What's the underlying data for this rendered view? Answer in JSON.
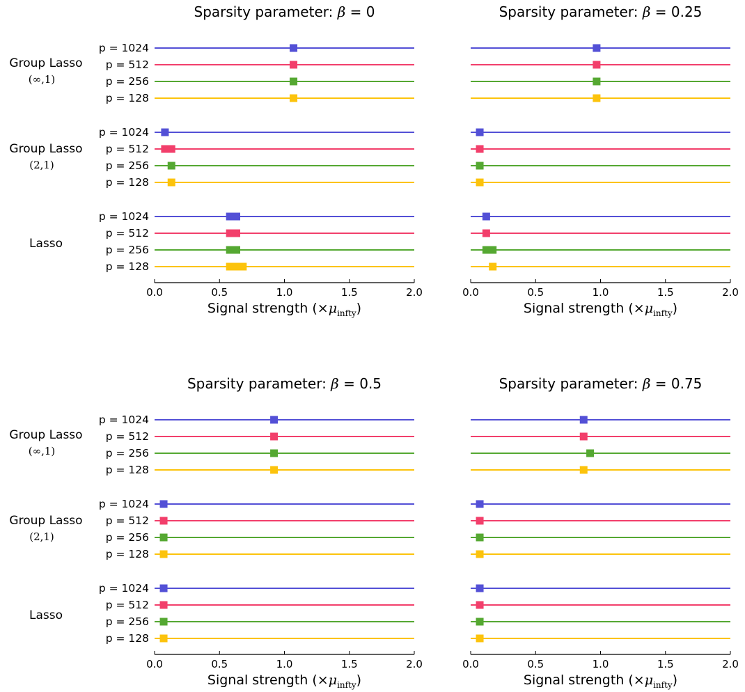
{
  "figure": {
    "groups": [
      {
        "key": "gl_inf",
        "name": "Group Lasso",
        "sub": "(∞,1)"
      },
      {
        "key": "gl_2",
        "name": "Group Lasso",
        "sub": "(2,1)"
      },
      {
        "key": "lasso",
        "name": "Lasso",
        "sub": ""
      }
    ],
    "row_labels": [
      "p = 1024",
      "p = 512",
      "p = 256",
      "p = 128"
    ],
    "xlabel_prefix": "Signal strength (",
    "xlabel_times": "×",
    "xlabel_mu": "μ",
    "xlabel_sub": "infty",
    "xlabel_suffix": ")",
    "title_prefix": "Sparsity parameter: ",
    "title_beta": "β",
    "title_eq": " = "
  },
  "colors": {
    "p = 1024": "#5350d6",
    "p = 512": "#f23f6b",
    "p = 256": "#55a832",
    "p = 128": "#fcc30c"
  },
  "chart_data": [
    {
      "type": "scatter",
      "title": "Sparsity parameter: β = 0",
      "beta": "0",
      "xlabel": "Signal strength (×μ_infty)",
      "xlim": [
        0.0,
        2.0
      ],
      "xticks": [
        "0.0",
        "0.5",
        "1.0",
        "1.5",
        "2.0"
      ],
      "groups": [
        {
          "name": "Group Lasso (∞,1)",
          "series": [
            {
              "name": "p = 1024",
              "x": [
                1.07,
                1.07
              ]
            },
            {
              "name": "p = 512",
              "x": [
                1.07,
                1.07
              ]
            },
            {
              "name": "p = 256",
              "x": [
                1.07,
                1.07
              ]
            },
            {
              "name": "p = 128",
              "x": [
                1.07,
                1.07
              ]
            }
          ]
        },
        {
          "name": "Group Lasso (2,1)",
          "series": [
            {
              "name": "p = 1024",
              "x": [
                0.08,
                0.08
              ]
            },
            {
              "name": "p = 512",
              "x": [
                0.08,
                0.13
              ]
            },
            {
              "name": "p = 256",
              "x": [
                0.13,
                0.13
              ]
            },
            {
              "name": "p = 128",
              "x": [
                0.13,
                0.13
              ]
            }
          ]
        },
        {
          "name": "Lasso",
          "series": [
            {
              "name": "p = 1024",
              "x": [
                0.58,
                0.63
              ]
            },
            {
              "name": "p = 512",
              "x": [
                0.58,
                0.63
              ]
            },
            {
              "name": "p = 256",
              "x": [
                0.58,
                0.63
              ]
            },
            {
              "name": "p = 128",
              "x": [
                0.58,
                0.68
              ]
            }
          ]
        }
      ]
    },
    {
      "type": "scatter",
      "title": "Sparsity parameter: β = 0.25",
      "beta": "0.25",
      "xlabel": "Signal strength (×μ_infty)",
      "xlim": [
        0.0,
        2.0
      ],
      "xticks": [
        "0.0",
        "0.5",
        "1.0",
        "1.5",
        "2.0"
      ],
      "groups": [
        {
          "name": "Group Lasso (∞,1)",
          "series": [
            {
              "name": "p = 1024",
              "x": [
                0.97,
                0.97
              ]
            },
            {
              "name": "p = 512",
              "x": [
                0.97,
                0.97
              ]
            },
            {
              "name": "p = 256",
              "x": [
                0.97,
                0.97
              ]
            },
            {
              "name": "p = 128",
              "x": [
                0.97,
                0.97
              ]
            }
          ]
        },
        {
          "name": "Group Lasso (2,1)",
          "series": [
            {
              "name": "p = 1024",
              "x": [
                0.07,
                0.07
              ]
            },
            {
              "name": "p = 512",
              "x": [
                0.07,
                0.07
              ]
            },
            {
              "name": "p = 256",
              "x": [
                0.07,
                0.07
              ]
            },
            {
              "name": "p = 128",
              "x": [
                0.07,
                0.07
              ]
            }
          ]
        },
        {
          "name": "Lasso",
          "series": [
            {
              "name": "p = 1024",
              "x": [
                0.12,
                0.12
              ]
            },
            {
              "name": "p = 512",
              "x": [
                0.12,
                0.12
              ]
            },
            {
              "name": "p = 256",
              "x": [
                0.12,
                0.17
              ]
            },
            {
              "name": "p = 128",
              "x": [
                0.17,
                0.17
              ]
            }
          ]
        }
      ]
    },
    {
      "type": "scatter",
      "title": "Sparsity parameter: β = 0.5",
      "beta": "0.5",
      "xlabel": "Signal strength (×μ_infty)",
      "xlim": [
        0.0,
        2.0
      ],
      "xticks": [
        "0.0",
        "0.5",
        "1.0",
        "1.5",
        "2.0"
      ],
      "groups": [
        {
          "name": "Group Lasso (∞,1)",
          "series": [
            {
              "name": "p = 1024",
              "x": [
                0.92,
                0.92
              ]
            },
            {
              "name": "p = 512",
              "x": [
                0.92,
                0.92
              ]
            },
            {
              "name": "p = 256",
              "x": [
                0.92,
                0.92
              ]
            },
            {
              "name": "p = 128",
              "x": [
                0.92,
                0.92
              ]
            }
          ]
        },
        {
          "name": "Group Lasso (2,1)",
          "series": [
            {
              "name": "p = 1024",
              "x": [
                0.07,
                0.07
              ]
            },
            {
              "name": "p = 512",
              "x": [
                0.07,
                0.07
              ]
            },
            {
              "name": "p = 256",
              "x": [
                0.07,
                0.07
              ]
            },
            {
              "name": "p = 128",
              "x": [
                0.07,
                0.07
              ]
            }
          ]
        },
        {
          "name": "Lasso",
          "series": [
            {
              "name": "p = 1024",
              "x": [
                0.07,
                0.07
              ]
            },
            {
              "name": "p = 512",
              "x": [
                0.07,
                0.07
              ]
            },
            {
              "name": "p = 256",
              "x": [
                0.07,
                0.07
              ]
            },
            {
              "name": "p = 128",
              "x": [
                0.07,
                0.07
              ]
            }
          ]
        }
      ]
    },
    {
      "type": "scatter",
      "title": "Sparsity parameter: β = 0.75",
      "beta": "0.75",
      "xlabel": "Signal strength (×μ_infty)",
      "xlim": [
        0.0,
        2.0
      ],
      "xticks": [
        "0.0",
        "0.5",
        "1.0",
        "1.5",
        "2.0"
      ],
      "groups": [
        {
          "name": "Group Lasso (∞,1)",
          "series": [
            {
              "name": "p = 1024",
              "x": [
                0.87,
                0.87
              ]
            },
            {
              "name": "p = 512",
              "x": [
                0.87,
                0.87
              ]
            },
            {
              "name": "p = 256",
              "x": [
                0.92,
                0.92
              ]
            },
            {
              "name": "p = 128",
              "x": [
                0.87,
                0.87
              ]
            }
          ]
        },
        {
          "name": "Group Lasso (2,1)",
          "series": [
            {
              "name": "p = 1024",
              "x": [
                0.07,
                0.07
              ]
            },
            {
              "name": "p = 512",
              "x": [
                0.07,
                0.07
              ]
            },
            {
              "name": "p = 256",
              "x": [
                0.07,
                0.07
              ]
            },
            {
              "name": "p = 128",
              "x": [
                0.07,
                0.07
              ]
            }
          ]
        },
        {
          "name": "Lasso",
          "series": [
            {
              "name": "p = 1024",
              "x": [
                0.07,
                0.07
              ]
            },
            {
              "name": "p = 512",
              "x": [
                0.07,
                0.07
              ]
            },
            {
              "name": "p = 256",
              "x": [
                0.07,
                0.07
              ]
            },
            {
              "name": "p = 128",
              "x": [
                0.07,
                0.07
              ]
            }
          ]
        }
      ]
    }
  ]
}
